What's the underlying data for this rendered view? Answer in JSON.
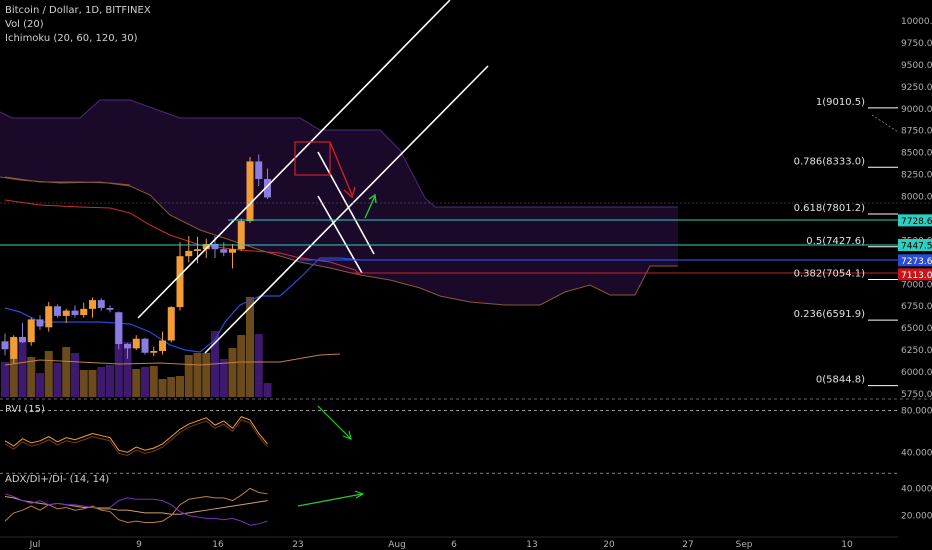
{
  "header": {
    "title": "Bitcoin / Dollar, 1D, BITFINEX",
    "indicators": [
      "Vol (20)",
      "Ichimoku (20, 60, 120, 30)"
    ]
  },
  "colors": {
    "background": "#000000",
    "bull_candle": "#f29c38",
    "bear_candle": "#8b7de0",
    "volume_bull": "#6b4a1e",
    "volume_bear": "#3d1a6e",
    "cloud": "#1c0a2c",
    "kumo_edge": "#4b2a7a",
    "kijun": "#c93030",
    "tenkan": "#2a4bd8",
    "fib_line": "#ffffff",
    "teal": "#2bd0c0",
    "blue_label": "#2a4bd8",
    "red_label": "#c8161a",
    "green_arrow": "#22cc33",
    "rvi_line": "#f0a030",
    "adx_line": "#d0a070",
    "di_minus": "#7b2fc0"
  },
  "chart_data": [
    {
      "type": "candlestick",
      "title": "Bitcoin / Dollar, 1D, BITFINEX",
      "x_ticks": [
        "Jul",
        "9",
        "16",
        "23",
        "Aug",
        "6",
        "13",
        "20",
        "27",
        "Sep",
        "10"
      ],
      "ylim": [
        5750,
        10250
      ],
      "y_ticks": [
        "10000.0",
        "9750.0",
        "9500.0",
        "9250.0",
        "9000.0",
        "8750.0",
        "8500.0",
        "8250.0",
        "8000.0",
        "7750.0",
        "7500.0",
        "7250.0",
        "7000.0",
        "6750.0",
        "6500.0",
        "6250.0",
        "6000.0",
        "5750.0"
      ],
      "candles": [
        {
          "o": 6350,
          "h": 6440,
          "l": 6190,
          "c": 6260
        },
        {
          "o": 6150,
          "h": 6420,
          "l": 6100,
          "c": 6400
        },
        {
          "o": 6400,
          "h": 6560,
          "l": 6330,
          "c": 6340
        },
        {
          "o": 6340,
          "h": 6620,
          "l": 6300,
          "c": 6600
        },
        {
          "o": 6600,
          "h": 6650,
          "l": 6480,
          "c": 6520
        },
        {
          "o": 6510,
          "h": 6800,
          "l": 6460,
          "c": 6750
        },
        {
          "o": 6750,
          "h": 6770,
          "l": 6620,
          "c": 6640
        },
        {
          "o": 6640,
          "h": 6720,
          "l": 6560,
          "c": 6700
        },
        {
          "o": 6700,
          "h": 6760,
          "l": 6620,
          "c": 6650
        },
        {
          "o": 6650,
          "h": 6790,
          "l": 6620,
          "c": 6720
        },
        {
          "o": 6720,
          "h": 6850,
          "l": 6620,
          "c": 6820
        },
        {
          "o": 6820,
          "h": 6840,
          "l": 6700,
          "c": 6730
        },
        {
          "o": 6730,
          "h": 6760,
          "l": 6680,
          "c": 6710
        },
        {
          "o": 6680,
          "h": 6690,
          "l": 6260,
          "c": 6320
        },
        {
          "o": 6320,
          "h": 6330,
          "l": 6150,
          "c": 6270
        },
        {
          "o": 6270,
          "h": 6420,
          "l": 6250,
          "c": 6380
        },
        {
          "o": 6380,
          "h": 6390,
          "l": 6200,
          "c": 6220
        },
        {
          "o": 6220,
          "h": 6290,
          "l": 6180,
          "c": 6240
        },
        {
          "o": 6240,
          "h": 6460,
          "l": 6200,
          "c": 6360
        },
        {
          "o": 6360,
          "h": 6750,
          "l": 6340,
          "c": 6740
        },
        {
          "o": 6740,
          "h": 7480,
          "l": 6700,
          "c": 7320
        },
        {
          "o": 7320,
          "h": 7550,
          "l": 7250,
          "c": 7380
        },
        {
          "o": 7380,
          "h": 7540,
          "l": 7240,
          "c": 7400
        },
        {
          "o": 7400,
          "h": 7520,
          "l": 7300,
          "c": 7460
        },
        {
          "o": 7460,
          "h": 7550,
          "l": 7300,
          "c": 7400
        },
        {
          "o": 7400,
          "h": 7480,
          "l": 7320,
          "c": 7360
        },
        {
          "o": 7360,
          "h": 7460,
          "l": 7180,
          "c": 7400
        },
        {
          "o": 7400,
          "h": 7750,
          "l": 7380,
          "c": 7720
        },
        {
          "o": 7720,
          "h": 8450,
          "l": 7700,
          "c": 8400
        },
        {
          "o": 8400,
          "h": 8480,
          "l": 8120,
          "c": 8200
        },
        {
          "o": 8200,
          "h": 8320,
          "l": 7970,
          "c": 7990
        }
      ],
      "volume_relative": [
        0.35,
        0.58,
        0.55,
        0.4,
        0.24,
        0.46,
        0.34,
        0.5,
        0.44,
        0.27,
        0.27,
        0.3,
        0.32,
        0.85,
        0.55,
        0.28,
        0.3,
        0.31,
        0.18,
        0.2,
        0.21,
        0.42,
        0.44,
        0.44,
        0.66,
        0.38,
        0.49,
        0.62,
        1.0,
        0.63,
        0.14
      ],
      "fib_levels": [
        {
          "label": "1(9010.5)",
          "value": 9010.5
        },
        {
          "label": "0.786(8333.0)",
          "value": 8333.0
        },
        {
          "label": "0.618(7801.2)",
          "value": 7801.2
        },
        {
          "label": "0.5(7427.6)",
          "value": 7427.6
        },
        {
          "label": "0.382(7054.1)",
          "value": 7054.1
        },
        {
          "label": "0.236(6591.9)",
          "value": 6591.9
        },
        {
          "label": "0(5844.8)",
          "value": 5844.8
        }
      ],
      "price_labels": [
        {
          "text": "7728.6",
          "value": 7728.6,
          "color": "#2bd0c0"
        },
        {
          "text": "7447.5",
          "value": 7447.5,
          "color": "#2bd0c0"
        },
        {
          "text": "7273.6",
          "value": 7273.6,
          "color": "#2a4bd8"
        },
        {
          "text": "7113.0",
          "value": 7113.0,
          "color": "#c8161a"
        }
      ],
      "grid": false,
      "legend": "top-left"
    },
    {
      "type": "line",
      "title": "RVI (15)",
      "ylim": [
        25,
        90
      ],
      "y_ticks": [
        "80.0000",
        "40.0000"
      ],
      "values": [
        51,
        46,
        53,
        49,
        51,
        55,
        50,
        54,
        52,
        55,
        58,
        56,
        54,
        42,
        40,
        45,
        42,
        44,
        48,
        55,
        62,
        67,
        70,
        73,
        66,
        70,
        63,
        74,
        71,
        58,
        48
      ]
    },
    {
      "type": "line",
      "title": "ADX/DI+/DI- (14, 14)",
      "ylim": [
        8,
        52
      ],
      "y_ticks": [
        "40.0000",
        "20.0000"
      ],
      "series": [
        {
          "values": [
            34,
            33,
            31,
            30,
            29,
            28,
            29,
            28,
            27,
            26,
            26,
            25,
            25,
            24,
            24,
            23,
            22,
            22,
            22,
            21,
            21,
            22,
            23,
            24,
            25,
            26,
            27,
            28,
            29,
            30,
            31
          ]
        },
        {
          "values": [
            16,
            22,
            24,
            27,
            24,
            28,
            25,
            26,
            24,
            25,
            27,
            24,
            23,
            17,
            15,
            16,
            15,
            15,
            16,
            20,
            28,
            32,
            33,
            34,
            33,
            33,
            31,
            35,
            40,
            37,
            36
          ]
        },
        {
          "values": [
            36,
            34,
            31,
            29,
            31,
            28,
            29,
            28,
            28,
            27,
            26,
            26,
            26,
            31,
            33,
            32,
            32,
            32,
            31,
            28,
            23,
            20,
            19,
            18,
            18,
            17,
            18,
            16,
            13,
            14,
            16
          ]
        }
      ]
    }
  ]
}
